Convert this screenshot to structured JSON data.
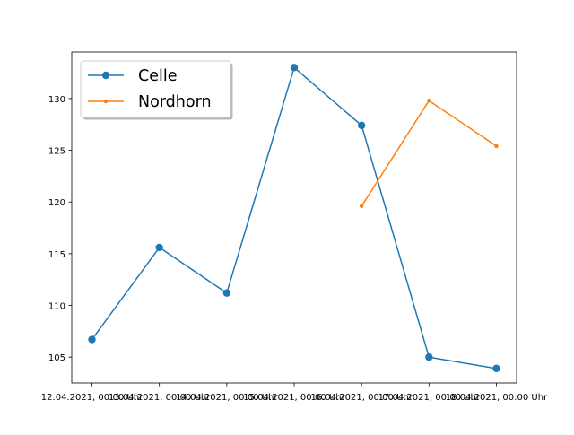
{
  "chart_data": {
    "type": "line",
    "title": "",
    "xlabel": "",
    "ylabel": "",
    "categories": [
      "12.04.2021, 00:00 Uhr",
      "13.04.2021, 00:00 Uhr",
      "14.04.2021, 00:00 Uhr",
      "15.04.2021, 00:00 Uhr",
      "16.04.2021, 00:00 Uhr",
      "17.04.2021, 00:00 Uhr",
      "18.04.2021, 00:00 Uhr"
    ],
    "ylim": [
      102.5,
      134.5
    ],
    "yticks": [
      105,
      110,
      115,
      120,
      125,
      130
    ],
    "grid": false,
    "legend_position": "top-left",
    "series": [
      {
        "name": "Celle",
        "color": "#1f77b4",
        "marker": "circle",
        "values": [
          106.7,
          115.6,
          111.2,
          133.0,
          127.4,
          105.0,
          103.9
        ]
      },
      {
        "name": "Nordhorn",
        "color": "#ff7f0e",
        "marker": "point",
        "values": [
          null,
          null,
          null,
          null,
          119.6,
          129.8,
          125.4
        ]
      }
    ]
  }
}
